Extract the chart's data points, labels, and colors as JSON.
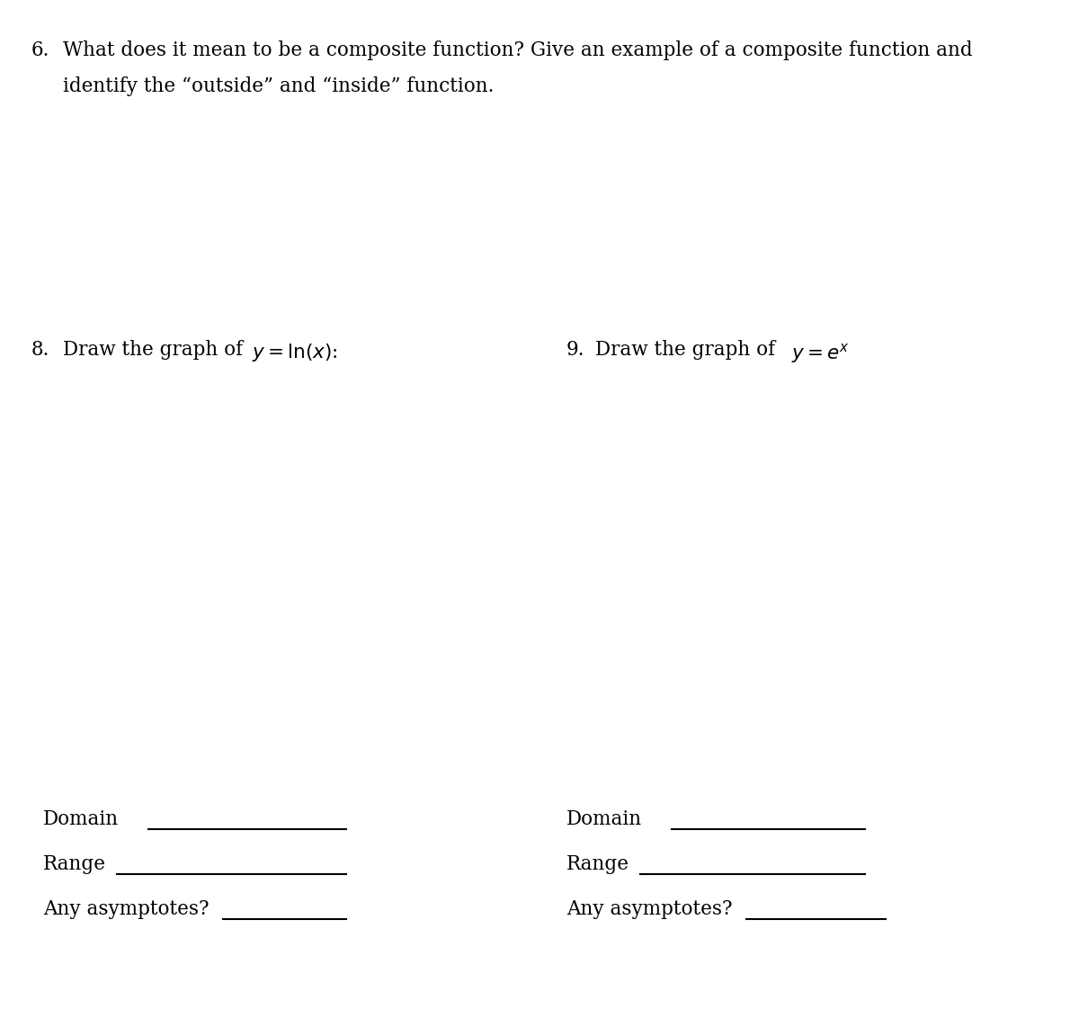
{
  "bg_color": "#ffffff",
  "text_color": "#000000",
  "q6_number": "6.",
  "q6_line1": "What does it mean to be a composite function? Give an example of a composite function and",
  "q6_line2": "identify the “outside” and “inside” function.",
  "q8_label": "8.",
  "q9_label": "9.",
  "font_family": "serif",
  "font_size_main": 15.5,
  "line_color": "#000000",
  "line_width": 1.5,
  "page_width": 12.0,
  "page_height": 11.22,
  "dpi": 100
}
